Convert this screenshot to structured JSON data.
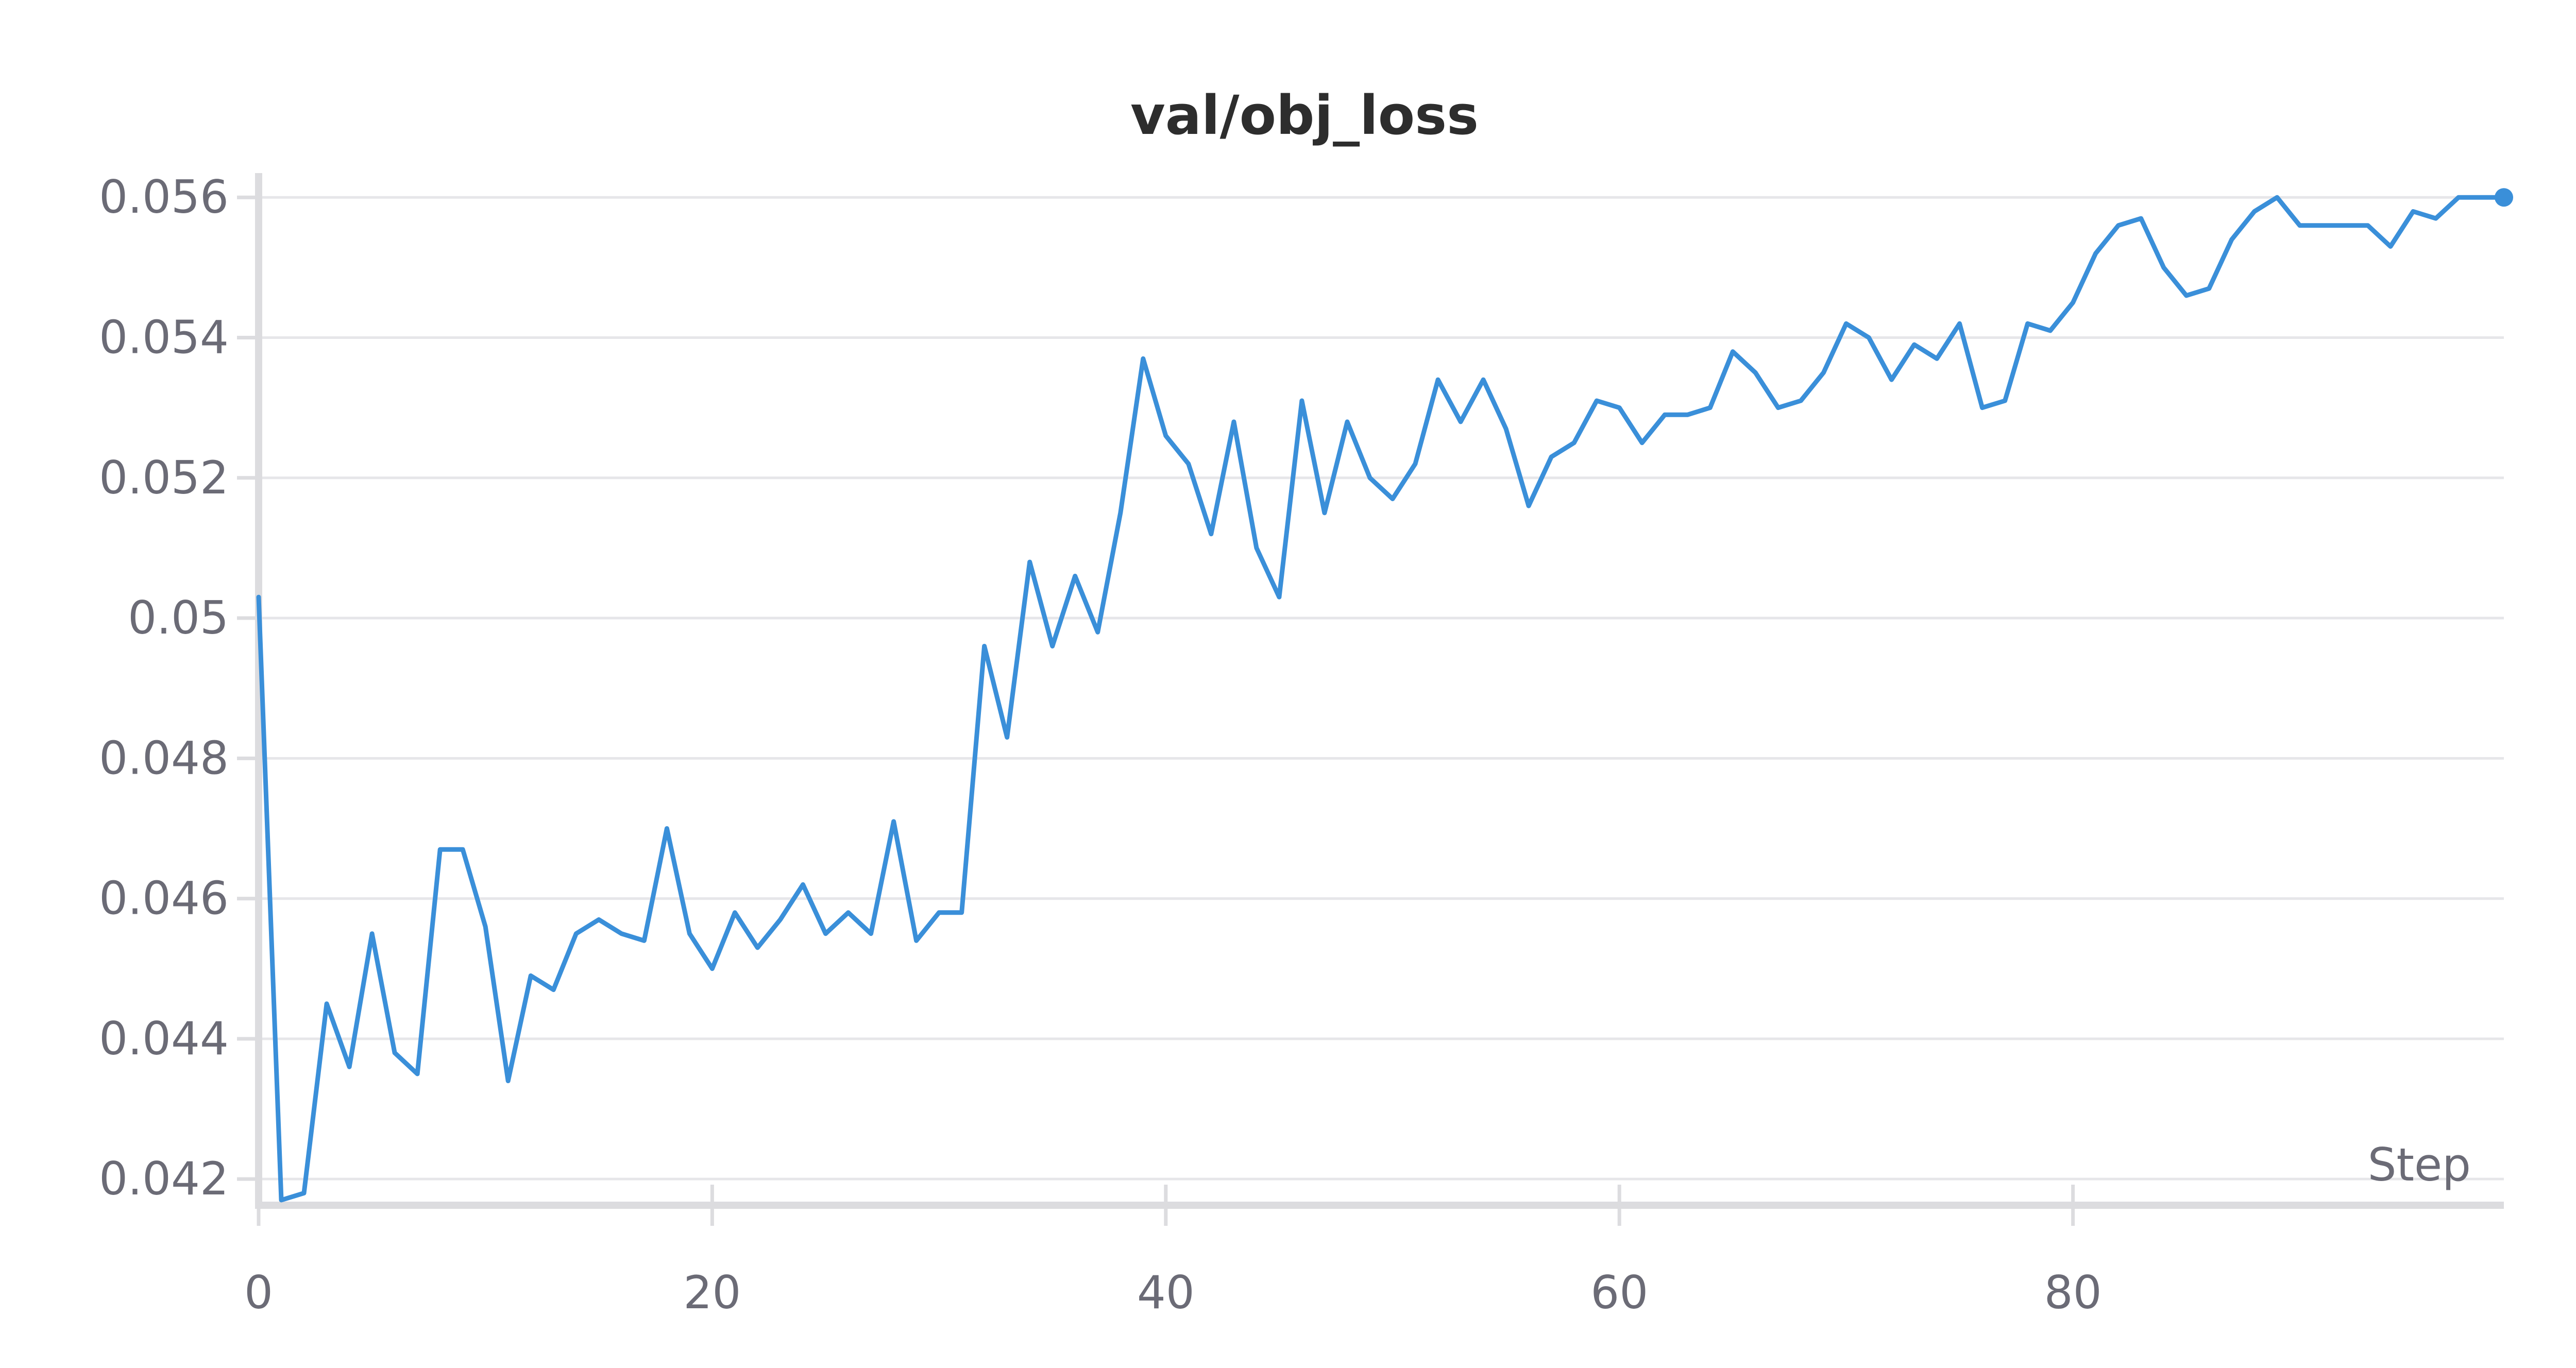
{
  "chart_data": {
    "type": "line",
    "title": "val/obj_loss",
    "xlabel": "Step",
    "ylabel": "",
    "xlim": [
      0,
      99
    ],
    "ylim": [
      0.0417,
      0.0562
    ],
    "x_ticks": [
      0,
      20,
      40,
      60,
      80
    ],
    "x_tick_labels": [
      "0",
      "20",
      "40",
      "60",
      "80"
    ],
    "y_ticks": [
      0.042,
      0.044,
      0.046,
      0.048,
      0.05,
      0.052,
      0.054,
      0.056
    ],
    "y_tick_labels": [
      "0.042",
      "0.044",
      "0.046",
      "0.048",
      "0.05",
      "0.052",
      "0.054",
      "0.056"
    ],
    "grid": true,
    "legend": "none",
    "colors": {
      "series": "#3a8fd9",
      "grid": "#e6e6e9",
      "axis": "#dcdcdf",
      "tick_text": "#6b6b76",
      "title_text": "#2d2d2d"
    },
    "series": [
      {
        "x": [
          0,
          1,
          2,
          3,
          4,
          5,
          6,
          7,
          8,
          9,
          10,
          11,
          12,
          13,
          14,
          15,
          16,
          17,
          18,
          19,
          20,
          21,
          22,
          23,
          24,
          25,
          26,
          27,
          28,
          29,
          30,
          31,
          32,
          33,
          34,
          35,
          36,
          37,
          38,
          39,
          40,
          41,
          42,
          43,
          44,
          45,
          46,
          47,
          48,
          49,
          50,
          51,
          52,
          53,
          54,
          55,
          56,
          57,
          58,
          59,
          60,
          61,
          62,
          63,
          64,
          65,
          66,
          67,
          68,
          69,
          70,
          71,
          72,
          73,
          74,
          75,
          76,
          77,
          78,
          79,
          80,
          81,
          82,
          83,
          84,
          85,
          86,
          87,
          88,
          89,
          90,
          91,
          92,
          93,
          94,
          95,
          96,
          97,
          98,
          99
        ],
        "values": [
          0.0503,
          0.0417,
          0.0418,
          0.0445,
          0.0436,
          0.0455,
          0.0438,
          0.0435,
          0.0467,
          0.0467,
          0.0456,
          0.0434,
          0.0449,
          0.0447,
          0.0455,
          0.0457,
          0.0455,
          0.0454,
          0.047,
          0.0455,
          0.045,
          0.0458,
          0.0453,
          0.0457,
          0.0462,
          0.0455,
          0.0458,
          0.0455,
          0.0471,
          0.0454,
          0.0458,
          0.0458,
          0.0496,
          0.0483,
          0.0508,
          0.0496,
          0.0506,
          0.0498,
          0.0515,
          0.0537,
          0.0526,
          0.0522,
          0.0512,
          0.0528,
          0.051,
          0.0503,
          0.0531,
          0.0515,
          0.0528,
          0.052,
          0.0517,
          0.0522,
          0.0534,
          0.0528,
          0.0534,
          0.0527,
          0.0516,
          0.0523,
          0.0525,
          0.0531,
          0.053,
          0.0525,
          0.0529,
          0.0529,
          0.053,
          0.0538,
          0.0535,
          0.053,
          0.0531,
          0.0535,
          0.0542,
          0.054,
          0.0534,
          0.0539,
          0.0537,
          0.0542,
          0.053,
          0.0531,
          0.0542,
          0.0541,
          0.0545,
          0.0552,
          0.0556,
          0.0557,
          0.055,
          0.0546,
          0.0547,
          0.0554,
          0.0558,
          0.056,
          0.0556,
          0.0556,
          0.0556,
          0.0556,
          0.0553,
          0.0558,
          0.0557,
          0.056,
          0.056,
          0.056
        ]
      }
    ]
  }
}
